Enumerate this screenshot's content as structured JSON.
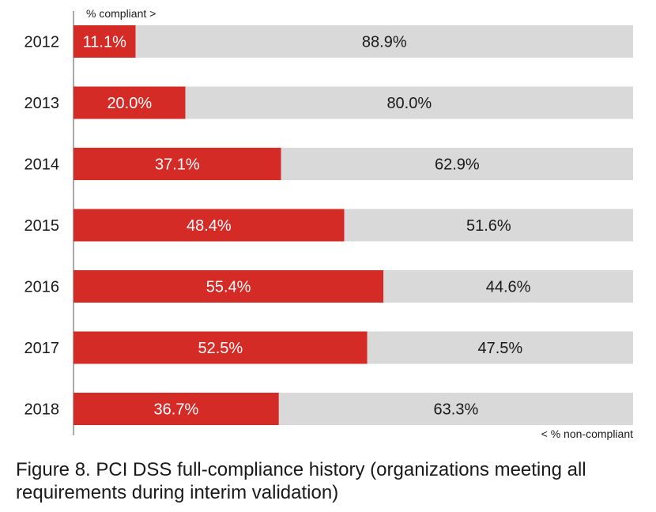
{
  "caption": "Figure 8. PCI DSS full-compliance history (organizations meeting all requirements during interim validation)",
  "colors": {
    "compliant": "#d52b27",
    "non_compliant": "#d9d9d9",
    "axis": "#555555",
    "text_dark": "#1a1a1a",
    "text_light": "#ffffff"
  },
  "chart_data": {
    "type": "bar",
    "orientation": "horizontal",
    "stacked": true,
    "categories": [
      "2012",
      "2013",
      "2014",
      "2015",
      "2016",
      "2017",
      "2018"
    ],
    "series": [
      {
        "name": "% compliant >",
        "values": [
          11.1,
          20.0,
          37.1,
          48.4,
          55.4,
          52.5,
          36.7
        ],
        "labels": [
          "11.1%",
          "20.0%",
          "37.1%",
          "48.4%",
          "55.4%",
          "52.5%",
          "36.7%"
        ]
      },
      {
        "name": "< % non-compliant",
        "values": [
          88.9,
          80.0,
          62.9,
          51.6,
          44.6,
          47.5,
          63.3
        ],
        "labels": [
          "88.9%",
          "80.0%",
          "62.9%",
          "51.6%",
          "44.6%",
          "47.5%",
          "63.3%"
        ]
      }
    ],
    "xlim": [
      0,
      100
    ],
    "grid": false,
    "legend": "top-left and bottom-right inline labels"
  }
}
